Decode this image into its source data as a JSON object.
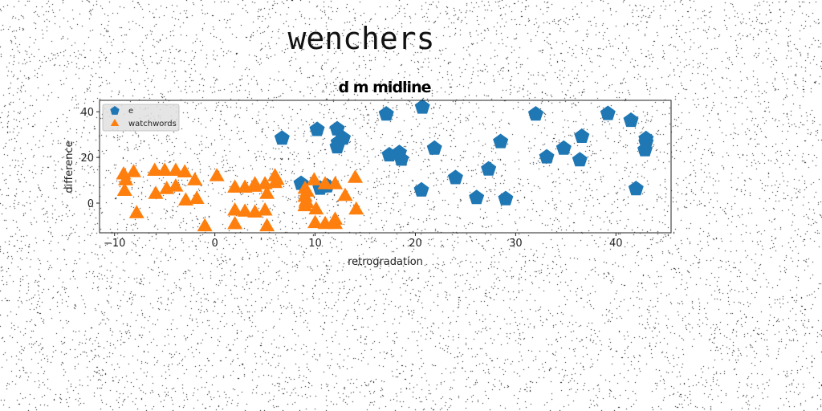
{
  "page": {
    "title": "wenchers"
  },
  "chart_data": {
    "type": "scatter",
    "title": "d m midline",
    "xlabel": "retrogradation",
    "ylabel": "difference",
    "xlim": [
      -11.5,
      45.5
    ],
    "ylim": [
      -13,
      45
    ],
    "xticks": [
      -10,
      0,
      10,
      20,
      30,
      40
    ],
    "yticks": [
      0,
      20,
      40
    ],
    "grid": false,
    "legend_position": "top-left",
    "series": [
      {
        "name": "e",
        "marker": "pentagon",
        "color": "#1f77b4",
        "points": [
          [
            6.7,
            28.4
          ],
          [
            8.6,
            8.6
          ],
          [
            10.2,
            32.2
          ],
          [
            10.5,
            6.5
          ],
          [
            11.2,
            7.5
          ],
          [
            12.2,
            32.5
          ],
          [
            12.2,
            24.6
          ],
          [
            12.8,
            28.4
          ],
          [
            12.3,
            26.5
          ],
          [
            17.1,
            39.0
          ],
          [
            17.4,
            21.1
          ],
          [
            18.4,
            22.1
          ],
          [
            18.6,
            19.2
          ],
          [
            20.7,
            42.0
          ],
          [
            20.6,
            5.7
          ],
          [
            21.9,
            24.0
          ],
          [
            24.0,
            11.1
          ],
          [
            26.1,
            2.4
          ],
          [
            27.3,
            14.9
          ],
          [
            28.5,
            26.9
          ],
          [
            29.0,
            1.9
          ],
          [
            32.0,
            39.0
          ],
          [
            33.1,
            20.2
          ],
          [
            34.8,
            24.0
          ],
          [
            36.4,
            18.9
          ],
          [
            36.6,
            29.2
          ],
          [
            39.2,
            39.2
          ],
          [
            41.5,
            36.2
          ],
          [
            42.0,
            6.3
          ],
          [
            43.0,
            28.2
          ],
          [
            42.9,
            23.3
          ],
          [
            43.0,
            26.6
          ]
        ]
      },
      {
        "name": "watchwords",
        "marker": "triangle",
        "color": "#ff7f0e",
        "points": [
          [
            -9.1,
            12.3
          ],
          [
            -8.9,
            9.7
          ],
          [
            -9.0,
            5.1
          ],
          [
            -8.1,
            13.3
          ],
          [
            -7.8,
            -4.7
          ],
          [
            -6.0,
            13.9
          ],
          [
            -5.9,
            3.8
          ],
          [
            -5.0,
            13.9
          ],
          [
            -4.8,
            5.9
          ],
          [
            -3.9,
            13.9
          ],
          [
            -3.9,
            7.0
          ],
          [
            -3.0,
            13.2
          ],
          [
            -2.9,
            0.9
          ],
          [
            -2.0,
            9.7
          ],
          [
            -1.8,
            1.6
          ],
          [
            -1.0,
            -10.4
          ],
          [
            0.2,
            11.5
          ],
          [
            2.0,
            6.5
          ],
          [
            2.0,
            -3.5
          ],
          [
            2.0,
            -9.5
          ],
          [
            3.0,
            6.5
          ],
          [
            3.0,
            -4.0
          ],
          [
            4.0,
            6.9
          ],
          [
            4.0,
            -4.4
          ],
          [
            4.0,
            8.0
          ],
          [
            5.0,
            8.0
          ],
          [
            5.0,
            -3.5
          ],
          [
            5.2,
            3.8
          ],
          [
            5.2,
            -10.4
          ],
          [
            6.0,
            8.5
          ],
          [
            6.0,
            11.5
          ],
          [
            6.2,
            9.9
          ],
          [
            9.0,
            6.0
          ],
          [
            9.0,
            2.5
          ],
          [
            9.1,
            0.5
          ],
          [
            9.0,
            -1.6
          ],
          [
            9.1,
            -0.2
          ],
          [
            9.2,
            4.7
          ],
          [
            9.9,
            9.7
          ],
          [
            10.0,
            -9.0
          ],
          [
            10.1,
            -3.0
          ],
          [
            11.0,
            8.0
          ],
          [
            11.0,
            -9.4
          ],
          [
            12.0,
            8.0
          ],
          [
            12.0,
            -9.4
          ],
          [
            13.0,
            2.9
          ],
          [
            14.0,
            10.8
          ],
          [
            14.1,
            -3.1
          ],
          [
            12.0,
            -7.5
          ]
        ]
      }
    ]
  }
}
